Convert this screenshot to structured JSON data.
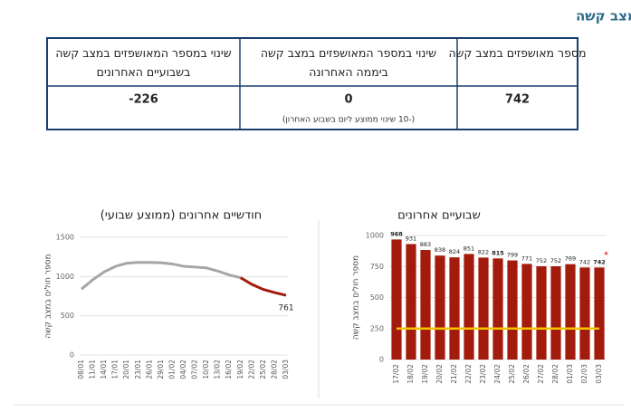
{
  "title": "חולים במצב קשה",
  "table": {
    "headers": [
      "מספר מאושפזים במצב קשה",
      "שינוי במספר המאושפזים במצב קשה ביממה האחרונה",
      "שינוי במספר המאושפזים במצב קשה בשבועיים האחרונים"
    ],
    "values": [
      742,
      0,
      -226
    ],
    "note": "(-10 שינוי ממוצע ליום בשבוע האחרון)"
  },
  "chart_data": [
    {
      "type": "line",
      "title": "חודשיים אחרונים (ממוצע שבועי)",
      "y_label": "מספר חולים במצב קשה",
      "categories": [
        "08/01",
        "11/01",
        "14/01",
        "17/01",
        "20/01",
        "23/01",
        "26/01",
        "29/01",
        "01/02",
        "04/02",
        "07/02",
        "10/02",
        "13/02",
        "16/02",
        "19/02",
        "22/02",
        "25/02",
        "28/02",
        "03/03"
      ],
      "values": [
        840,
        960,
        1060,
        1130,
        1170,
        1180,
        1180,
        1175,
        1160,
        1130,
        1120,
        1110,
        1070,
        1020,
        985,
        900,
        835,
        795,
        761
      ],
      "color": "#a6a6a6",
      "recent_color": "#a31b0c",
      "recent_from": "19/02",
      "ylim": [
        0,
        1500
      ],
      "yticks": [
        0,
        500,
        1000,
        1500
      ],
      "grid": true
    },
    {
      "type": "bar",
      "title": "שבועיים אחרונים",
      "y_label": "מספר חולים במצב קשה",
      "categories": [
        "17/02",
        "18/02",
        "19/02",
        "20/02",
        "21/02",
        "22/02",
        "23/02",
        "24/02",
        "25/02",
        "26/02",
        "27/02",
        "28/02",
        "01/03",
        "02/03",
        "03/03"
      ],
      "values": [
        968,
        931,
        883,
        838,
        824,
        851,
        822,
        815,
        799,
        771,
        752,
        752,
        769,
        742,
        742
      ],
      "color": "#a31b0c",
      "reference_line": {
        "value": 250,
        "color": "#f5c400"
      },
      "annotation": "*",
      "ylim": [
        0,
        1000
      ],
      "yticks": [
        0,
        250,
        500,
        750,
        1000
      ],
      "grid": true
    }
  ]
}
